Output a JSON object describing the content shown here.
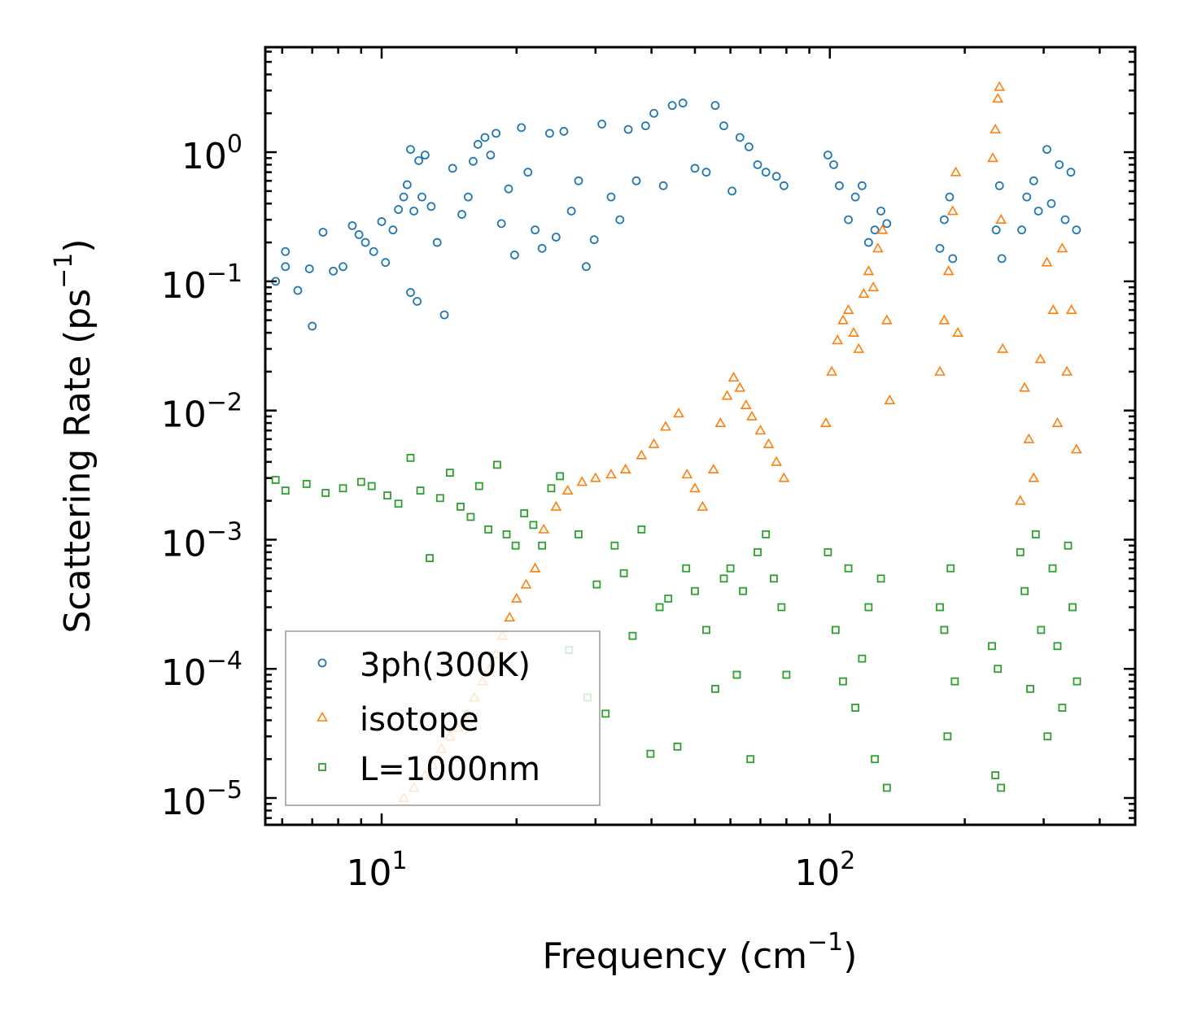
{
  "chart_data": {
    "type": "scatter",
    "xlabel": "Frequency (cm",
    "xlabel_exp": "−1",
    "xlabel_close": ")",
    "ylabel": "Scattering Rate (ps",
    "ylabel_exp": "−1",
    "ylabel_close": ")",
    "x_scale": "log",
    "y_scale": "log",
    "xlim": [
      5.5,
      480
    ],
    "ylim": [
      6.2e-06,
      6.5
    ],
    "x_ticks": [
      {
        "value": 10,
        "base": "10",
        "exp": "1"
      },
      {
        "value": 100,
        "base": "10",
        "exp": "2"
      }
    ],
    "y_ticks": [
      {
        "value": 1,
        "base": "10",
        "exp": "0"
      },
      {
        "value": 0.1,
        "base": "10",
        "exp": "−1"
      },
      {
        "value": 0.01,
        "base": "10",
        "exp": "−2"
      },
      {
        "value": 0.001,
        "base": "10",
        "exp": "−3"
      },
      {
        "value": 0.0001,
        "base": "10",
        "exp": "−4"
      },
      {
        "value": 1e-05,
        "base": "10",
        "exp": "−5"
      }
    ],
    "legend_position": "lower-left",
    "series": [
      {
        "name": "3ph(300K)",
        "marker": "circle",
        "color": "#1f77b4",
        "points": [
          [
            5.8,
            0.1
          ],
          [
            6.1,
            0.17
          ],
          [
            6.1,
            0.13
          ],
          [
            6.5,
            0.085
          ],
          [
            6.9,
            0.125
          ],
          [
            7.0,
            0.045
          ],
          [
            7.4,
            0.24
          ],
          [
            7.8,
            0.12
          ],
          [
            8.2,
            0.13
          ],
          [
            8.6,
            0.27
          ],
          [
            8.9,
            0.23
          ],
          [
            9.2,
            0.2
          ],
          [
            9.6,
            0.17
          ],
          [
            10.0,
            0.29
          ],
          [
            10.2,
            0.14
          ],
          [
            10.6,
            0.25
          ],
          [
            10.9,
            0.36
          ],
          [
            11.2,
            0.45
          ],
          [
            11.4,
            0.56
          ],
          [
            11.6,
            1.05
          ],
          [
            11.6,
            0.082
          ],
          [
            11.8,
            0.35
          ],
          [
            12.0,
            0.07
          ],
          [
            12.1,
            0.86
          ],
          [
            12.3,
            0.45
          ],
          [
            12.5,
            0.95
          ],
          [
            12.9,
            0.38
          ],
          [
            13.3,
            0.2
          ],
          [
            13.8,
            0.055
          ],
          [
            14.4,
            0.75
          ],
          [
            15.1,
            0.33
          ],
          [
            15.6,
            0.45
          ],
          [
            16.0,
            0.85
          ],
          [
            16.4,
            1.15
          ],
          [
            17.0,
            1.3
          ],
          [
            17.5,
            0.95
          ],
          [
            18.0,
            1.4
          ],
          [
            18.5,
            0.28
          ],
          [
            19.2,
            0.52
          ],
          [
            19.8,
            0.16
          ],
          [
            20.5,
            1.55
          ],
          [
            21.2,
            0.7
          ],
          [
            22.0,
            0.25
          ],
          [
            22.8,
            0.18
          ],
          [
            23.7,
            1.4
          ],
          [
            24.5,
            0.22
          ],
          [
            25.5,
            1.45
          ],
          [
            26.5,
            0.35
          ],
          [
            27.5,
            0.6
          ],
          [
            28.6,
            0.13
          ],
          [
            29.8,
            0.21
          ],
          [
            31.0,
            1.65
          ],
          [
            32.5,
            0.45
          ],
          [
            34.0,
            0.3
          ],
          [
            35.5,
            1.5
          ],
          [
            37.0,
            0.6
          ],
          [
            38.8,
            1.6
          ],
          [
            40.5,
            2.0
          ],
          [
            42.5,
            0.55
          ],
          [
            44.5,
            2.3
          ],
          [
            47.0,
            2.4
          ],
          [
            50.0,
            0.75
          ],
          [
            53.0,
            0.7
          ],
          [
            55.5,
            2.3
          ],
          [
            58.0,
            1.6
          ],
          [
            60.5,
            0.5
          ],
          [
            63.0,
            1.3
          ],
          [
            66.0,
            1.1
          ],
          [
            69.0,
            0.8
          ],
          [
            72.0,
            0.7
          ],
          [
            76.0,
            0.65
          ],
          [
            79.0,
            0.55
          ],
          [
            99.0,
            0.95
          ],
          [
            102.0,
            0.8
          ],
          [
            105.0,
            0.55
          ],
          [
            110.0,
            0.3
          ],
          [
            114.0,
            0.45
          ],
          [
            118.0,
            0.55
          ],
          [
            122.0,
            0.2
          ],
          [
            126.0,
            0.25
          ],
          [
            130.0,
            0.35
          ],
          [
            134.0,
            0.28
          ],
          [
            176.0,
            0.18
          ],
          [
            180.0,
            0.3
          ],
          [
            185.0,
            0.45
          ],
          [
            188.0,
            0.15
          ],
          [
            235.0,
            0.25
          ],
          [
            239.0,
            0.55
          ],
          [
            242.0,
            0.15
          ],
          [
            268.0,
            0.25
          ],
          [
            275.0,
            0.45
          ],
          [
            285.0,
            0.6
          ],
          [
            292.0,
            0.35
          ],
          [
            305.0,
            1.05
          ],
          [
            312.0,
            0.4
          ],
          [
            325.0,
            0.8
          ],
          [
            335.0,
            0.3
          ],
          [
            345.0,
            0.7
          ],
          [
            355.0,
            0.25
          ]
        ]
      },
      {
        "name": "isotope",
        "marker": "triangle",
        "color": "#ff7f0e",
        "points": [
          [
            11.2,
            1e-05
          ],
          [
            11.8,
            1.2e-05
          ],
          [
            12.5,
            1.5e-05
          ],
          [
            13.0,
            1.8e-05
          ],
          [
            13.6,
            2.4e-05
          ],
          [
            14.2,
            3e-05
          ],
          [
            14.8,
            3.5e-05
          ],
          [
            15.5,
            4.5e-05
          ],
          [
            16.1,
            6e-05
          ],
          [
            16.8,
            8e-05
          ],
          [
            17.4,
            0.0001
          ],
          [
            18.0,
            0.00013
          ],
          [
            18.6,
            0.00018
          ],
          [
            19.3,
            0.00025
          ],
          [
            20.0,
            0.00035
          ],
          [
            21.0,
            0.00045
          ],
          [
            22.0,
            0.0006
          ],
          [
            23.0,
            0.0012
          ],
          [
            24.5,
            0.0018
          ],
          [
            26.0,
            0.0024
          ],
          [
            28.0,
            0.0028
          ],
          [
            30.0,
            0.003
          ],
          [
            32.5,
            0.0032
          ],
          [
            35.0,
            0.0035
          ],
          [
            38.0,
            0.0045
          ],
          [
            40.5,
            0.0055
          ],
          [
            43.0,
            0.0075
          ],
          [
            46.0,
            0.0095
          ],
          [
            48.0,
            0.0032
          ],
          [
            50.0,
            0.0025
          ],
          [
            52.0,
            0.0018
          ],
          [
            55.0,
            0.0035
          ],
          [
            57.0,
            0.008
          ],
          [
            59.0,
            0.013
          ],
          [
            61.0,
            0.018
          ],
          [
            63.0,
            0.015
          ],
          [
            65.0,
            0.011
          ],
          [
            67.0,
            0.009
          ],
          [
            70.0,
            0.007
          ],
          [
            73.0,
            0.0055
          ],
          [
            76.0,
            0.004
          ],
          [
            79.0,
            0.003
          ],
          [
            98.0,
            0.008
          ],
          [
            101.0,
            0.02
          ],
          [
            104.0,
            0.035
          ],
          [
            107.0,
            0.05
          ],
          [
            110.0,
            0.06
          ],
          [
            113.0,
            0.04
          ],
          [
            116.0,
            0.03
          ],
          [
            119.0,
            0.08
          ],
          [
            122.0,
            0.12
          ],
          [
            125.0,
            0.09
          ],
          [
            128.0,
            0.18
          ],
          [
            131.0,
            0.25
          ],
          [
            134.0,
            0.05
          ],
          [
            136.0,
            0.012
          ],
          [
            176.0,
            0.02
          ],
          [
            180.0,
            0.05
          ],
          [
            184.0,
            0.12
          ],
          [
            188.0,
            0.35
          ],
          [
            191.0,
            0.7
          ],
          [
            193.0,
            0.04
          ],
          [
            231.0,
            0.9
          ],
          [
            234.0,
            1.5
          ],
          [
            237.0,
            2.6
          ],
          [
            239.0,
            3.2
          ],
          [
            241.0,
            0.3
          ],
          [
            243.0,
            0.03
          ],
          [
            266.0,
            0.002
          ],
          [
            272.0,
            0.015
          ],
          [
            278.0,
            0.006
          ],
          [
            285.0,
            0.003
          ],
          [
            295.0,
            0.025
          ],
          [
            305.0,
            0.14
          ],
          [
            315.0,
            0.06
          ],
          [
            322.0,
            0.008
          ],
          [
            330.0,
            0.18
          ],
          [
            338.0,
            0.02
          ],
          [
            346.0,
            0.06
          ],
          [
            355.0,
            0.005
          ]
        ]
      },
      {
        "name": "L=1000nm",
        "marker": "square",
        "color": "#2ca02c",
        "points": [
          [
            5.8,
            0.0029
          ],
          [
            6.1,
            0.0024
          ],
          [
            6.8,
            0.0027
          ],
          [
            7.5,
            0.0023
          ],
          [
            8.2,
            0.0025
          ],
          [
            9.0,
            0.0028
          ],
          [
            9.5,
            0.0026
          ],
          [
            10.3,
            0.0022
          ],
          [
            10.9,
            0.0019
          ],
          [
            11.6,
            0.0043
          ],
          [
            12.2,
            0.0024
          ],
          [
            12.8,
            0.00072
          ],
          [
            13.5,
            0.0021
          ],
          [
            14.2,
            0.0033
          ],
          [
            15.0,
            0.0018
          ],
          [
            15.8,
            0.0015
          ],
          [
            16.5,
            0.0026
          ],
          [
            17.3,
            0.0012
          ],
          [
            18.1,
            0.0038
          ],
          [
            19.0,
            0.0011
          ],
          [
            19.9,
            0.0009
          ],
          [
            20.8,
            0.0016
          ],
          [
            21.8,
            0.0013
          ],
          [
            22.8,
            0.0009
          ],
          [
            23.9,
            0.0025
          ],
          [
            25.0,
            0.0031
          ],
          [
            26.2,
            0.00014
          ],
          [
            27.5,
            0.0011
          ],
          [
            28.8,
            6e-05
          ],
          [
            30.2,
            0.00045
          ],
          [
            31.6,
            4.5e-05
          ],
          [
            33.1,
            0.0009
          ],
          [
            34.7,
            0.00055
          ],
          [
            36.3,
            0.00018
          ],
          [
            38.0,
            0.0012
          ],
          [
            39.8,
            2.2e-05
          ],
          [
            41.7,
            0.0003
          ],
          [
            43.6,
            0.00035
          ],
          [
            45.7,
            2.5e-05
          ],
          [
            47.8,
            0.0006
          ],
          [
            50.0,
            0.0004
          ],
          [
            53.0,
            0.0002
          ],
          [
            55.5,
            7e-05
          ],
          [
            58.0,
            0.0005
          ],
          [
            60.0,
            0.0006
          ],
          [
            62.0,
            9e-05
          ],
          [
            64.0,
            0.0004
          ],
          [
            66.5,
            2e-05
          ],
          [
            69.0,
            0.0008
          ],
          [
            72.0,
            0.0011
          ],
          [
            75.0,
            0.0005
          ],
          [
            78.0,
            0.0003
          ],
          [
            80.0,
            9e-05
          ],
          [
            99.0,
            0.0008
          ],
          [
            103.0,
            0.0002
          ],
          [
            107.0,
            8e-05
          ],
          [
            110.0,
            0.0006
          ],
          [
            114.0,
            5e-05
          ],
          [
            118.0,
            0.00012
          ],
          [
            122.0,
            0.0003
          ],
          [
            126.0,
            2e-05
          ],
          [
            130.0,
            0.0005
          ],
          [
            134.0,
            1.2e-05
          ],
          [
            176.0,
            0.0003
          ],
          [
            180.0,
            0.0002
          ],
          [
            183.0,
            3e-05
          ],
          [
            186.0,
            0.0006
          ],
          [
            190.0,
            8e-05
          ],
          [
            230.0,
            0.00015
          ],
          [
            234.0,
            1.5e-05
          ],
          [
            237.0,
            0.0001
          ],
          [
            241.0,
            1.2e-05
          ],
          [
            266.0,
            0.0008
          ],
          [
            272.0,
            0.0004
          ],
          [
            280.0,
            7e-05
          ],
          [
            288.0,
            0.0011
          ],
          [
            296.0,
            0.0002
          ],
          [
            306.0,
            3e-05
          ],
          [
            314.0,
            0.0006
          ],
          [
            322.0,
            0.00015
          ],
          [
            330.0,
            5e-05
          ],
          [
            340.0,
            0.0009
          ],
          [
            348.0,
            0.0003
          ],
          [
            356.0,
            8e-05
          ]
        ]
      }
    ]
  }
}
